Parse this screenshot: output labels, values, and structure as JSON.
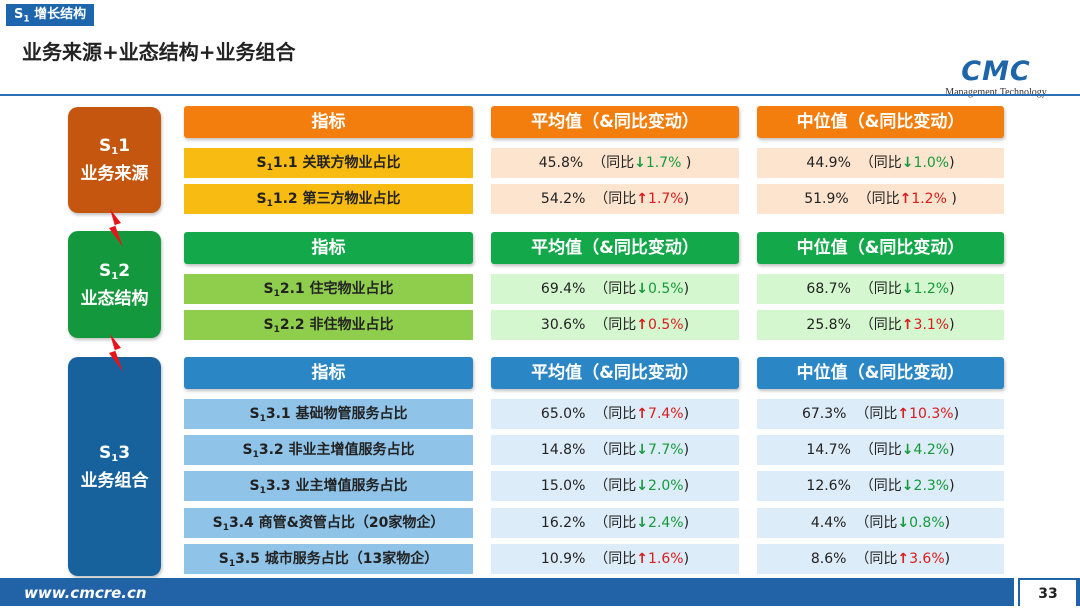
{
  "section_tag": {
    "prefix": "S",
    "sub": "1",
    "text": "增长结构"
  },
  "page_title": "业务来源+业态结构+业务组合",
  "logo": {
    "mark": "CMC",
    "subtitle": "Management Technology"
  },
  "footer": {
    "url": "www.cmcre.cn",
    "page_number": "33"
  },
  "headers": {
    "indicator": "指标",
    "mean": "平均值（&同比变动）",
    "median": "中位值（&同比变动）"
  },
  "groups": [
    {
      "label_prefix": "S",
      "label_sub": "1",
      "label_suffix": "1",
      "name": "业务来源",
      "rows": [
        {
          "code_prefix": "S",
          "code_sub": "1",
          "code_suffix": "1.1",
          "name": "关联方物业占比",
          "mean": "45.8%",
          "mean_dir": "down",
          "mean_change": "1.7%",
          "mean_close": " )",
          "median": "44.9%",
          "median_dir": "down",
          "median_change": "1.0%",
          "median_close": ")"
        },
        {
          "code_prefix": "S",
          "code_sub": "1",
          "code_suffix": "1.2",
          "name": "第三方物业占比",
          "mean": "54.2%",
          "mean_dir": "up",
          "mean_change": "1.7%",
          "mean_close": ")",
          "median": "51.9%",
          "median_dir": "up",
          "median_change": "1.2%",
          "median_close": " )"
        }
      ]
    },
    {
      "label_prefix": "S",
      "label_sub": "1",
      "label_suffix": "2",
      "name": "业态结构",
      "rows": [
        {
          "code_prefix": "S",
          "code_sub": "1",
          "code_suffix": "2.1",
          "name": "住宅物业占比",
          "mean": "69.4%",
          "mean_dir": "down",
          "mean_change": "0.5%",
          "mean_close": ")",
          "median": "68.7%",
          "median_dir": "down",
          "median_change": "1.2%",
          "median_close": ")"
        },
        {
          "code_prefix": "S",
          "code_sub": "1",
          "code_suffix": "2.2",
          "name": "非住物业占比",
          "mean": "30.6%",
          "mean_dir": "up",
          "mean_change": "0.5%",
          "mean_close": ")",
          "median": "25.8%",
          "median_dir": "up",
          "median_change": "3.1%",
          "median_close": ")"
        }
      ]
    },
    {
      "label_prefix": "S",
      "label_sub": "1",
      "label_suffix": "3",
      "name": "业务组合",
      "rows": [
        {
          "code_prefix": "S",
          "code_sub": "1",
          "code_suffix": "3.1",
          "name": "基础物管服务占比",
          "mean": "65.0%",
          "mean_dir": "up",
          "mean_change": "7.4%",
          "mean_close": ")",
          "median": "67.3%",
          "median_dir": "up",
          "median_change": "10.3%",
          "median_close": ")"
        },
        {
          "code_prefix": "S",
          "code_sub": "1",
          "code_suffix": "3.2",
          "name": "非业主增值服务占比",
          "mean": "14.8%",
          "mean_dir": "down",
          "mean_change": "7.7%",
          "mean_close": ")",
          "median": "14.7%",
          "median_dir": "down",
          "median_change": "4.2%",
          "median_close": ")"
        },
        {
          "code_prefix": "S",
          "code_sub": "1",
          "code_suffix": "3.3",
          "name": "业主增值服务占比",
          "mean": "15.0%",
          "mean_dir": "down",
          "mean_change": "2.0%",
          "mean_close": ")",
          "median": "12.6%",
          "median_dir": "down",
          "median_change": "2.3%",
          "median_close": ")"
        },
        {
          "code_prefix": "S",
          "code_sub": "1",
          "code_suffix": "3.4",
          "name": "商管&资管占比（20家物企）",
          "mean": "16.2%",
          "mean_dir": "down",
          "mean_change": "2.4%",
          "mean_close": ")",
          "median": "4.4%",
          "median_dir": "down",
          "median_change": "0.8%",
          "median_close": ")"
        },
        {
          "code_prefix": "S",
          "code_sub": "1",
          "code_suffix": "3.5",
          "name": "城市服务占比（13家物企）",
          "mean": "10.9%",
          "mean_dir": "up",
          "mean_change": "1.6%",
          "mean_close": ")",
          "median": "8.6%",
          "median_dir": "up",
          "median_change": "3.6%",
          "median_close": ")"
        }
      ]
    }
  ],
  "prefix_label": "（同比",
  "colors": {
    "group1": "#c4560f",
    "group2": "#14983d",
    "group3": "#17629d",
    "hdr1": "#f37d0d",
    "hdr2": "#13a84a",
    "hdr3": "#2b86c6",
    "name1": "#f8bb12",
    "name2": "#8fcd4c",
    "name3": "#8fc3e8",
    "val1": "#fde4cf",
    "val2": "#d5f7d0",
    "val3": "#dcecf8",
    "up": "#d91c1c",
    "down": "#159a3b",
    "footer": "#2262a6"
  }
}
